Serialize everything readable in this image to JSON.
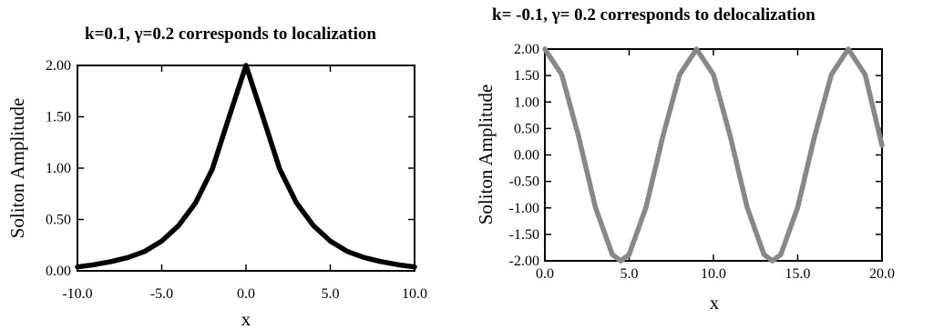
{
  "chart_data": [
    {
      "type": "line",
      "title": "k=0.1, γ=0.2 corresponds to localization",
      "xlabel": "x",
      "ylabel": "Soliton Amplitude",
      "xlim": [
        -10,
        10
      ],
      "ylim": [
        0,
        2
      ],
      "x_ticks": [
        "-10.0",
        "-5.0",
        "0.0",
        "5.0",
        "10.0"
      ],
      "y_ticks": [
        "0.00",
        "0.50",
        "1.00",
        "1.50",
        "2.00"
      ],
      "series": [
        {
          "color": "#000000",
          "x": [
            -10,
            -9,
            -8,
            -7,
            -6,
            -5,
            -4,
            -3,
            -2,
            -1,
            0,
            1,
            2,
            3,
            4,
            5,
            6,
            7,
            8,
            9,
            10
          ],
          "y": [
            0.038,
            0.06,
            0.09,
            0.13,
            0.19,
            0.29,
            0.44,
            0.66,
            0.99,
            1.5,
            2.0,
            1.5,
            0.99,
            0.66,
            0.44,
            0.29,
            0.19,
            0.13,
            0.09,
            0.06,
            0.038
          ]
        }
      ]
    },
    {
      "type": "line",
      "title": "k= -0.1, γ= 0.2 corresponds to delocalization",
      "xlabel": "x",
      "ylabel": "Soliton Amplitude",
      "xlim": [
        0,
        20
      ],
      "ylim": [
        -2,
        2
      ],
      "x_ticks": [
        "0.0",
        "5.0",
        "10.0",
        "15.0",
        "20.0"
      ],
      "y_ticks": [
        "-2.00",
        "-1.50",
        "-1.00",
        "-0.50",
        "0.00",
        "0.50",
        "1.00",
        "1.50",
        "2.00"
      ],
      "series": [
        {
          "color": "#888888",
          "x": [
            0,
            1,
            2,
            3,
            4,
            4.5,
            5,
            6,
            7,
            8,
            9,
            10,
            11,
            12,
            13,
            13.5,
            14,
            15,
            16,
            17,
            18,
            19,
            20
          ],
          "y": [
            2.0,
            1.52,
            0.35,
            -0.99,
            -1.88,
            -2.0,
            -1.88,
            -0.99,
            0.35,
            1.52,
            2.0,
            1.52,
            0.35,
            -0.99,
            -1.88,
            -2.0,
            -1.88,
            -0.99,
            0.35,
            1.52,
            2.0,
            1.52,
            0.18
          ]
        }
      ]
    }
  ]
}
